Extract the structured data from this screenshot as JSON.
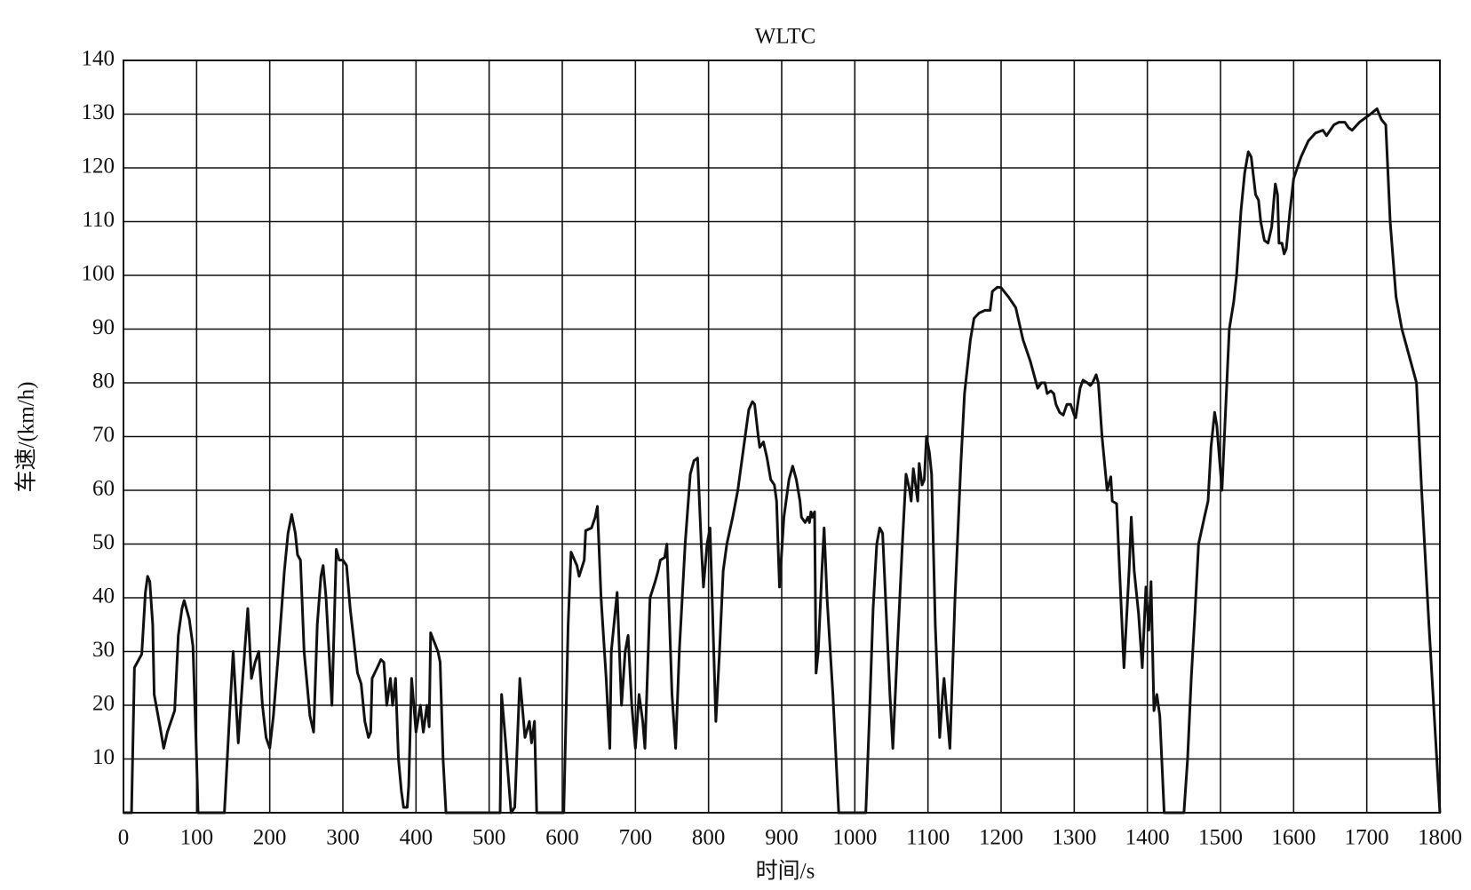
{
  "chart_data": {
    "type": "line",
    "title": "WLTC",
    "x_label": "时间/s",
    "y_label": "车速/(km/h)",
    "xlim": [
      0,
      1800
    ],
    "ylim": [
      0,
      140
    ],
    "xticks": [
      0,
      100,
      200,
      300,
      400,
      500,
      600,
      700,
      800,
      900,
      1000,
      1100,
      1200,
      1300,
      1400,
      1500,
      1600,
      1700,
      1800
    ],
    "yticks": [
      10,
      20,
      30,
      40,
      50,
      60,
      70,
      80,
      90,
      100,
      110,
      120,
      130,
      140
    ],
    "grid": true,
    "series": [
      {
        "color": "#111111",
        "x": [
          0,
          11,
          15,
          25,
          30,
          33,
          36,
          40,
          42,
          50,
          55,
          60,
          70,
          75,
          80,
          83,
          90,
          95,
          100,
          102,
          138,
          145,
          150,
          157,
          163,
          170,
          175,
          180,
          185,
          190,
          195,
          200,
          205,
          212,
          220,
          225,
          230,
          235,
          238,
          242,
          247,
          255,
          260,
          265,
          270,
          273,
          277,
          285,
          291,
          295,
          300,
          305,
          310,
          320,
          325,
          330,
          335,
          338,
          340,
          347,
          352,
          356,
          360,
          365,
          368,
          372,
          376,
          380,
          383,
          388,
          390,
          394,
          400,
          406,
          410,
          415,
          418,
          420,
          430,
          433,
          437,
          441,
          515,
          517,
          522,
          530,
          535,
          542,
          549,
          555,
          558,
          562,
          565,
          602,
          608,
          612,
          620,
          623,
          630,
          632,
          640,
          645,
          648,
          653,
          660,
          665,
          667,
          675,
          681,
          686,
          690,
          695,
          700,
          705,
          710,
          713,
          720,
          727,
          731,
          734,
          740,
          743,
          750,
          755,
          760,
          768,
          775,
          780,
          785,
          790,
          793,
          798,
          802,
          810,
          815,
          820,
          825,
          833,
          840,
          850,
          855,
          860,
          863,
          868,
          870,
          875,
          880,
          885,
          890,
          893,
          897,
          903,
          910,
          915,
          920,
          925,
          927,
          932,
          936,
          938,
          940,
          942,
          945,
          947,
          950,
          955,
          958,
          962,
          970,
          978,
          1015,
          1020,
          1025,
          1030,
          1034,
          1038,
          1042,
          1048,
          1052,
          1058,
          1065,
          1070,
          1075,
          1077,
          1080,
          1084,
          1086,
          1088,
          1092,
          1095,
          1098,
          1102,
          1105,
          1110,
          1116,
          1120,
          1122,
          1125,
          1130,
          1137,
          1145,
          1150,
          1158,
          1163,
          1170,
          1178,
          1185,
          1188,
          1195,
          1200,
          1210,
          1215,
          1220,
          1230,
          1240,
          1250,
          1255,
          1260,
          1263,
          1268,
          1272,
          1275,
          1280,
          1285,
          1290,
          1295,
          1300,
          1302,
          1308,
          1312,
          1318,
          1322,
          1325,
          1330,
          1333,
          1338,
          1345,
          1350,
          1352,
          1358,
          1362,
          1368,
          1375,
          1378,
          1382,
          1388,
          1393,
          1398,
          1402,
          1405,
          1409,
          1413,
          1417,
          1423,
          1450,
          1455,
          1460,
          1465,
          1470,
          1478,
          1483,
          1487,
          1492,
          1495,
          1502,
          1512,
          1518,
          1522,
          1528,
          1533,
          1538,
          1542,
          1548,
          1552,
          1555,
          1560,
          1565,
          1570,
          1573,
          1575,
          1578,
          1580,
          1584,
          1587,
          1590,
          1595,
          1600,
          1610,
          1620,
          1630,
          1640,
          1645,
          1655,
          1662,
          1670,
          1675,
          1680,
          1690,
          1705,
          1714,
          1720,
          1726,
          1732,
          1740,
          1748,
          1760,
          1768,
          1775,
          1785,
          1800
        ],
        "values": [
          0,
          0,
          27,
          29.5,
          41,
          44,
          43,
          35,
          22,
          16,
          12,
          15,
          19,
          33,
          38,
          39.5,
          36,
          31,
          10,
          0,
          0,
          18,
          30,
          13,
          25,
          38,
          25,
          28,
          30,
          20,
          14,
          12,
          18,
          30,
          45,
          52,
          55.5,
          52,
          48,
          47,
          30,
          18,
          15,
          35,
          44,
          46,
          40,
          20,
          49,
          47,
          47,
          46,
          38,
          26,
          24,
          17,
          14,
          15,
          25,
          27,
          28.5,
          28,
          20,
          25,
          20,
          25,
          10,
          4,
          1,
          1,
          5,
          25,
          15,
          20,
          15,
          20,
          16,
          33.5,
          30,
          28,
          10,
          0,
          0,
          22,
          14,
          0,
          1,
          25,
          14,
          17,
          13,
          17,
          0,
          0,
          35,
          48.5,
          46,
          44,
          47,
          52.5,
          53,
          55,
          57,
          40,
          25,
          12,
          30,
          41,
          20,
          30,
          33,
          20,
          12,
          22,
          17,
          12,
          40,
          43,
          45,
          47,
          47.5,
          50,
          22,
          12,
          30,
          50,
          63,
          65.5,
          66,
          50,
          42,
          50,
          53,
          17,
          30,
          45,
          50,
          55,
          60,
          70,
          75,
          76.5,
          76,
          70,
          68,
          69,
          66,
          62,
          61,
          58,
          42,
          55,
          62,
          64.5,
          62,
          58,
          55,
          54,
          55,
          54,
          56,
          55,
          56,
          26,
          30,
          45,
          53,
          40,
          22,
          0,
          0,
          18,
          38,
          50,
          53,
          52,
          40,
          22,
          12,
          30,
          50,
          63,
          60,
          58,
          64,
          60,
          58,
          65,
          61,
          62,
          70,
          67,
          63,
          35,
          14,
          22,
          25,
          20,
          12,
          40,
          65,
          78,
          88,
          92,
          93,
          93.5,
          93.5,
          97,
          97.8,
          97.7,
          96,
          95,
          94,
          88,
          84,
          79,
          80,
          80,
          78,
          78.5,
          78,
          76,
          74.5,
          74,
          76,
          76,
          74,
          73.5,
          79,
          80.5,
          80,
          79.5,
          80,
          81.5,
          80,
          70,
          60,
          62.5,
          58,
          57.5,
          45,
          27,
          45,
          55,
          45,
          37,
          27,
          42,
          34,
          43,
          19,
          22,
          18,
          0,
          0,
          10,
          25,
          37,
          50,
          55,
          58,
          68,
          74.5,
          72,
          60,
          90,
          95,
          100,
          112,
          119,
          123,
          122,
          115,
          114,
          110,
          106.5,
          106,
          109,
          114,
          117,
          115,
          106,
          106,
          104,
          105,
          112,
          118,
          122,
          125,
          126.5,
          127,
          126,
          128,
          128.5,
          128.5,
          127.5,
          127,
          128.5,
          130,
          131,
          129,
          128,
          110,
          96,
          90,
          84,
          80,
          60,
          35,
          0
        ]
      }
    ]
  }
}
